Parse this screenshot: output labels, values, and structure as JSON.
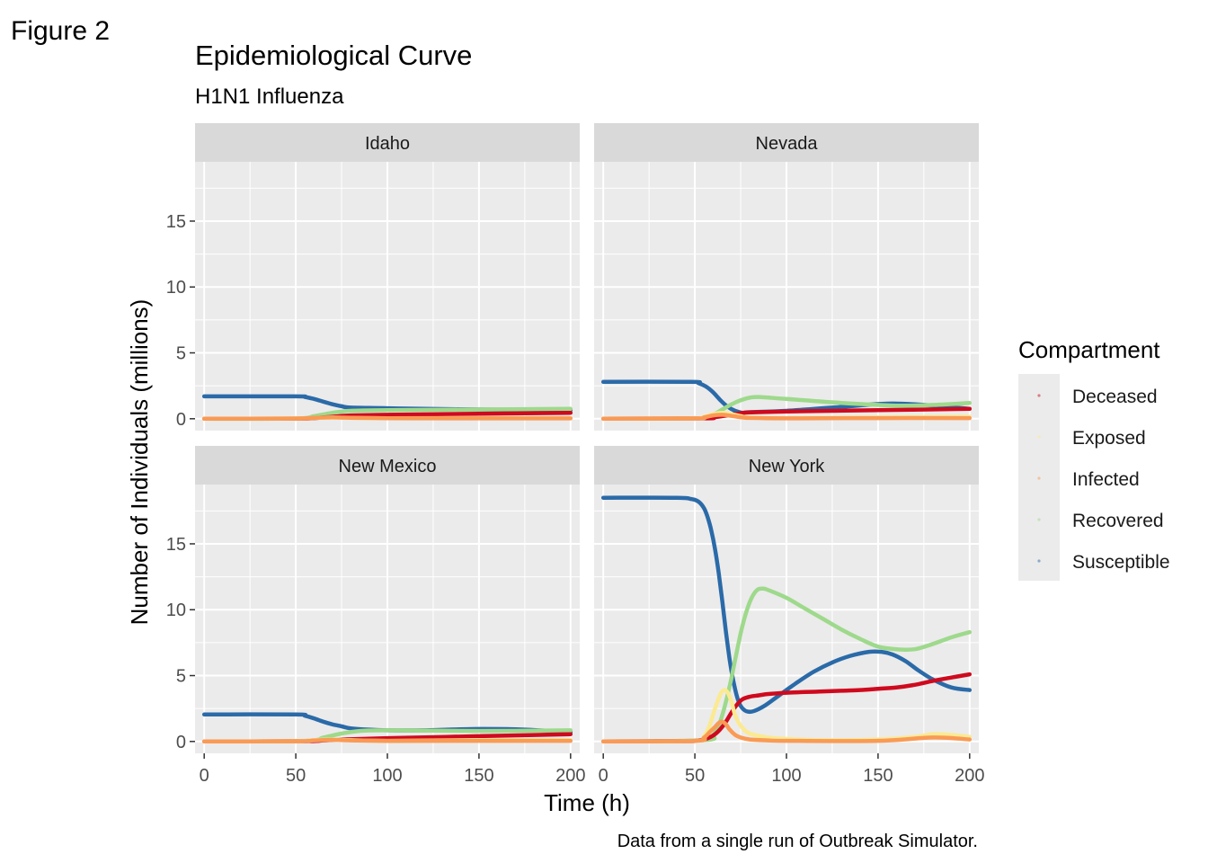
{
  "figure_tag": "Figure 2",
  "chart_data": {
    "type": "line",
    "title": "Epidemiological Curve",
    "subtitle": "H1N1 Influenza",
    "xlabel": "Time (h)",
    "ylabel": "Number of Individuals (millions)",
    "caption": "Data from a single run of Outbreak Simulator.",
    "xlim": [
      -5,
      205
    ],
    "ylim": [
      -0.9,
      19.5
    ],
    "x_ticks": [
      0,
      50,
      100,
      150,
      200
    ],
    "y_ticks": [
      0,
      5,
      10,
      15
    ],
    "grid": true,
    "legend": {
      "title": "Compartment",
      "position": "right",
      "entries": [
        "Deceased",
        "Exposed",
        "Infected",
        "Recovered",
        "Susceptible"
      ]
    },
    "colors": {
      "Susceptible": "#2b6aa8",
      "Recovered": "#9ed98c",
      "Deceased": "#cf0a1e",
      "Exposed": "#fbea92",
      "Infected": "#f99a55",
      "panel_bg": "#ebebeb",
      "strip_bg": "#d9d9d9",
      "grid": "#ffffff"
    },
    "facet_layout": "2x2",
    "panels": [
      {
        "name": "Idaho",
        "series": [
          {
            "name": "Susceptible",
            "x": [
              0,
              50,
              55,
              60,
              65,
              70,
              75,
              80,
              100,
              120,
              150,
              200
            ],
            "y": [
              1.7,
              1.7,
              1.65,
              1.5,
              1.3,
              1.1,
              0.95,
              0.85,
              0.8,
              0.75,
              0.7,
              0.65
            ]
          },
          {
            "name": "Recovered",
            "x": [
              0,
              50,
              60,
              70,
              80,
              100,
              150,
              200
            ],
            "y": [
              0,
              0.02,
              0.2,
              0.45,
              0.6,
              0.65,
              0.7,
              0.75
            ]
          },
          {
            "name": "Deceased",
            "x": [
              0,
              50,
              60,
              70,
              80,
              100,
              150,
              200
            ],
            "y": [
              0,
              0.01,
              0.05,
              0.15,
              0.25,
              0.3,
              0.38,
              0.45
            ]
          },
          {
            "name": "Exposed",
            "x": [
              0,
              50,
              60,
              70,
              80,
              100,
              150,
              200
            ],
            "y": [
              0,
              0.02,
              0.06,
              0.08,
              0.06,
              0.04,
              0.05,
              0.05
            ]
          },
          {
            "name": "Infected",
            "x": [
              0,
              50,
              60,
              70,
              80,
              100,
              150,
              200
            ],
            "y": [
              0,
              0.02,
              0.07,
              0.1,
              0.07,
              0.04,
              0.03,
              0.03
            ]
          }
        ]
      },
      {
        "name": "Nevada",
        "series": [
          {
            "name": "Susceptible",
            "x": [
              0,
              48,
              52,
              56,
              60,
              64,
              68,
              72,
              76,
              80,
              100,
              130,
              155,
              175,
              200
            ],
            "y": [
              2.8,
              2.8,
              2.7,
              2.45,
              2.0,
              1.4,
              0.9,
              0.6,
              0.45,
              0.5,
              0.6,
              0.9,
              1.15,
              1.05,
              0.75
            ]
          },
          {
            "name": "Recovered",
            "x": [
              0,
              55,
              60,
              65,
              70,
              75,
              80,
              85,
              100,
              130,
              160,
              180,
              200
            ],
            "y": [
              0,
              0.05,
              0.3,
              0.7,
              1.1,
              1.4,
              1.6,
              1.65,
              1.5,
              1.2,
              1.0,
              1.05,
              1.2
            ]
          },
          {
            "name": "Deceased",
            "x": [
              0,
              55,
              60,
              65,
              70,
              75,
              80,
              100,
              150,
              200
            ],
            "y": [
              0,
              0.03,
              0.1,
              0.2,
              0.32,
              0.42,
              0.48,
              0.55,
              0.65,
              0.75
            ]
          },
          {
            "name": "Exposed",
            "x": [
              0,
              50,
              55,
              60,
              65,
              70,
              75,
              80,
              100,
              150,
              200
            ],
            "y": [
              0,
              0.03,
              0.15,
              0.35,
              0.45,
              0.35,
              0.2,
              0.1,
              0.05,
              0.1,
              0.15
            ]
          },
          {
            "name": "Infected",
            "x": [
              0,
              50,
              55,
              60,
              65,
              70,
              75,
              80,
              100,
              150,
              200
            ],
            "y": [
              0,
              0.03,
              0.1,
              0.25,
              0.3,
              0.22,
              0.12,
              0.06,
              0.03,
              0.05,
              0.05
            ]
          }
        ]
      },
      {
        "name": "New Mexico",
        "series": [
          {
            "name": "Susceptible",
            "x": [
              0,
              50,
              55,
              60,
              65,
              70,
              75,
              80,
              90,
              100,
              120,
              150,
              175,
              200
            ],
            "y": [
              2.05,
              2.05,
              1.95,
              1.75,
              1.5,
              1.3,
              1.15,
              1.0,
              0.9,
              0.85,
              0.85,
              0.95,
              0.9,
              0.7
            ]
          },
          {
            "name": "Recovered",
            "x": [
              0,
              55,
              65,
              75,
              85,
              100,
              150,
              200
            ],
            "y": [
              0,
              0.05,
              0.3,
              0.6,
              0.8,
              0.85,
              0.8,
              0.85
            ]
          },
          {
            "name": "Deceased",
            "x": [
              0,
              55,
              65,
              75,
              100,
              150,
              200
            ],
            "y": [
              0,
              0.02,
              0.08,
              0.15,
              0.25,
              0.4,
              0.55
            ]
          },
          {
            "name": "Exposed",
            "x": [
              0,
              50,
              60,
              70,
              80,
              100,
              150,
              200
            ],
            "y": [
              0,
              0.02,
              0.1,
              0.15,
              0.1,
              0.05,
              0.1,
              0.1
            ]
          },
          {
            "name": "Infected",
            "x": [
              0,
              50,
              60,
              70,
              80,
              100,
              150,
              200
            ],
            "y": [
              0,
              0.02,
              0.08,
              0.12,
              0.08,
              0.04,
              0.05,
              0.05
            ]
          }
        ]
      },
      {
        "name": "New York",
        "series": [
          {
            "name": "Susceptible",
            "x": [
              0,
              40,
              48,
              52,
              55,
              57,
              59,
              61,
              63,
              65,
              67,
              69,
              71,
              73,
              75,
              78,
              82,
              88,
              95,
              105,
              115,
              125,
              135,
              145,
              152,
              158,
              165,
              172,
              180,
              190,
              200
            ],
            "y": [
              18.5,
              18.5,
              18.4,
              18.2,
              17.7,
              17.0,
              16.0,
              14.6,
              12.8,
              10.6,
              8.3,
              6.2,
              4.6,
              3.4,
              2.7,
              2.3,
              2.3,
              2.7,
              3.4,
              4.4,
              5.3,
              6.0,
              6.5,
              6.8,
              6.8,
              6.6,
              6.1,
              5.4,
              4.7,
              4.1,
              3.9
            ]
          },
          {
            "name": "Recovered",
            "x": [
              0,
              55,
              60,
              63,
              66,
              69,
              72,
              75,
              78,
              81,
              84,
              87,
              90,
              100,
              110,
              120,
              130,
              140,
              150,
              160,
              170,
              180,
              190,
              200
            ],
            "y": [
              0,
              0.1,
              0.5,
              1.2,
              2.5,
              4.2,
              6.2,
              8.2,
              9.8,
              10.9,
              11.5,
              11.6,
              11.5,
              10.9,
              10.1,
              9.3,
              8.5,
              7.8,
              7.2,
              7.0,
              7.0,
              7.4,
              7.9,
              8.3
            ]
          },
          {
            "name": "Deceased",
            "x": [
              0,
              45,
              50,
              55,
              58,
              61,
              64,
              67,
              70,
              73,
              76,
              80,
              85,
              90,
              100,
              110,
              120,
              130,
              140,
              150,
              160,
              170,
              180,
              190,
              200
            ],
            "y": [
              0,
              0.02,
              0.05,
              0.15,
              0.3,
              0.55,
              0.95,
              1.5,
              2.2,
              2.8,
              3.2,
              3.4,
              3.5,
              3.6,
              3.7,
              3.75,
              3.8,
              3.85,
              3.9,
              4.0,
              4.1,
              4.3,
              4.6,
              4.85,
              5.1
            ]
          },
          {
            "name": "Exposed",
            "x": [
              0,
              50,
              55,
              58,
              61,
              64,
              66,
              68,
              70,
              72,
              75,
              80,
              90,
              100,
              120,
              150,
              170,
              180,
              190,
              200
            ],
            "y": [
              0,
              0.05,
              0.4,
              1.2,
              2.5,
              3.6,
              3.9,
              3.7,
              3.0,
              2.0,
              1.2,
              0.6,
              0.3,
              0.2,
              0.1,
              0.15,
              0.35,
              0.55,
              0.5,
              0.35
            ]
          },
          {
            "name": "Infected",
            "x": [
              0,
              50,
              55,
              58,
              61,
              63,
              65,
              67,
              69,
              72,
              75,
              80,
              90,
              100,
              150,
              180,
              200
            ],
            "y": [
              0,
              0.05,
              0.3,
              0.7,
              1.1,
              1.4,
              1.5,
              1.3,
              0.9,
              0.5,
              0.3,
              0.15,
              0.08,
              0.05,
              0.05,
              0.3,
              0.15
            ]
          }
        ]
      }
    ]
  }
}
